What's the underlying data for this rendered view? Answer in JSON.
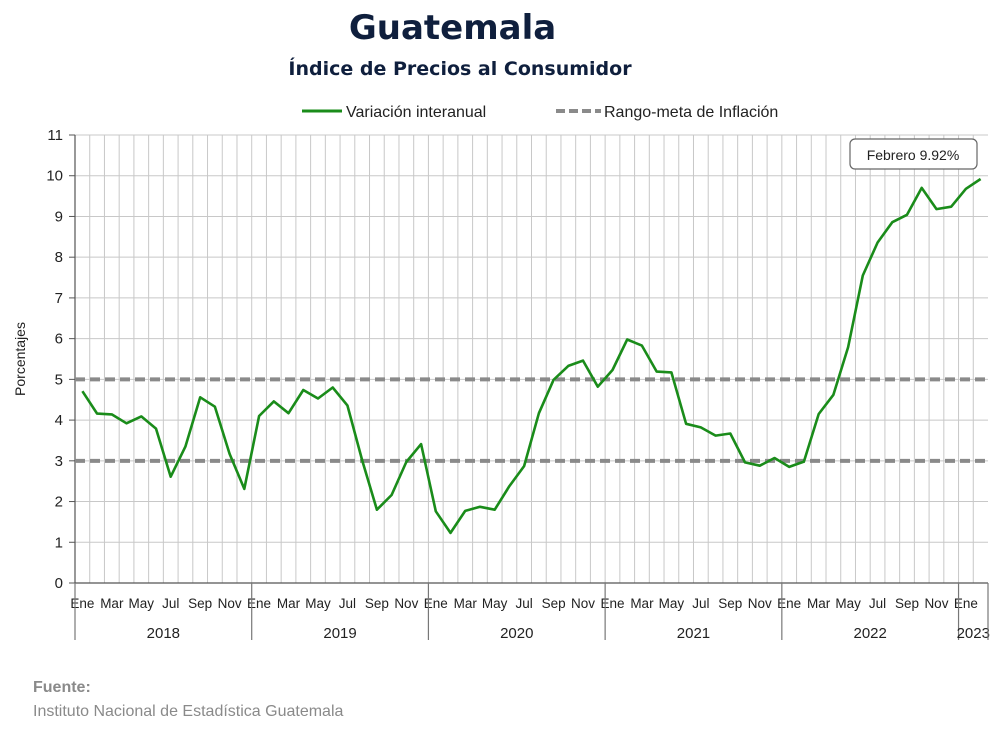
{
  "chart_data": {
    "type": "line",
    "title": "Guatemala",
    "subtitle": "Índice de Precios al Consumidor",
    "ylabel": "Porcentajes",
    "ylim": [
      0,
      11
    ],
    "yticks": [
      0,
      1,
      2,
      3,
      4,
      5,
      6,
      7,
      8,
      9,
      10,
      11
    ],
    "grid": true,
    "legend_position": "top",
    "month_tick_labels": [
      "Ene",
      "Mar",
      "May",
      "Jul",
      "Sep",
      "Nov"
    ],
    "year_labels": [
      "2018",
      "2019",
      "2020",
      "2021",
      "2022",
      "2023"
    ],
    "x": [
      "2018-01",
      "2018-02",
      "2018-03",
      "2018-04",
      "2018-05",
      "2018-06",
      "2018-07",
      "2018-08",
      "2018-09",
      "2018-10",
      "2018-11",
      "2018-12",
      "2019-01",
      "2019-02",
      "2019-03",
      "2019-04",
      "2019-05",
      "2019-06",
      "2019-07",
      "2019-08",
      "2019-09",
      "2019-10",
      "2019-11",
      "2019-12",
      "2020-01",
      "2020-02",
      "2020-03",
      "2020-04",
      "2020-05",
      "2020-06",
      "2020-07",
      "2020-08",
      "2020-09",
      "2020-10",
      "2020-11",
      "2020-12",
      "2021-01",
      "2021-02",
      "2021-03",
      "2021-04",
      "2021-05",
      "2021-06",
      "2021-07",
      "2021-08",
      "2021-09",
      "2021-10",
      "2021-11",
      "2021-12",
      "2022-01",
      "2022-02",
      "2022-03",
      "2022-04",
      "2022-05",
      "2022-06",
      "2022-07",
      "2022-08",
      "2022-09",
      "2022-10",
      "2022-11",
      "2022-12",
      "2023-01",
      "2023-02"
    ],
    "series": [
      {
        "name": "Variación interanual",
        "color": "#1a8c1a",
        "style": "solid",
        "values": [
          4.71,
          4.16,
          4.14,
          3.92,
          4.09,
          3.79,
          2.61,
          3.35,
          4.56,
          4.33,
          3.17,
          2.31,
          4.1,
          4.46,
          4.17,
          4.74,
          4.53,
          4.8,
          4.36,
          3.01,
          1.8,
          2.16,
          2.97,
          3.41,
          1.76,
          1.23,
          1.77,
          1.87,
          1.8,
          2.38,
          2.87,
          4.17,
          4.99,
          5.33,
          5.46,
          4.82,
          5.23,
          5.98,
          5.83,
          5.19,
          5.17,
          3.91,
          3.82,
          3.62,
          3.67,
          2.96,
          2.88,
          3.07,
          2.85,
          2.98,
          4.15,
          4.62,
          5.79,
          7.55,
          8.36,
          8.86,
          9.04,
          9.7,
          9.18,
          9.24,
          9.68,
          9.92
        ]
      },
      {
        "name": "Rango-meta de Inflación",
        "color": "#8a8a8a",
        "style": "dashed",
        "lines": [
          3,
          5
        ]
      }
    ],
    "annotation": "Febrero 9.92%"
  },
  "source": {
    "label": "Fuente:",
    "text": "Instituto Nacional de Estadística Guatemala"
  }
}
